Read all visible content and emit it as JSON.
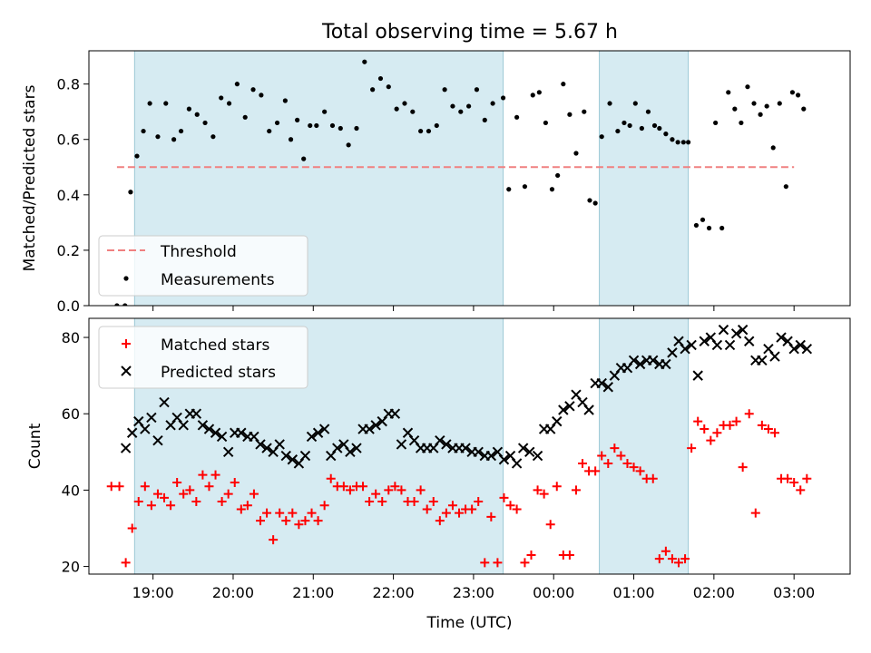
{
  "title": "Total observing time = 5.67 h",
  "chart_data": [
    {
      "type": "scatter",
      "ylabel": "Matched/Predicted stars",
      "ylim": [
        0,
        0.92
      ],
      "yticks": [
        0.0,
        0.2,
        0.4,
        0.6,
        0.8
      ],
      "ytick_labels": [
        "0.0",
        "0.2",
        "0.4",
        "0.6",
        "0.8"
      ],
      "xlim_hours": [
        18.2,
        27.7
      ],
      "shaded_intervals_hours": [
        [
          18.77,
          23.37
        ],
        [
          24.57,
          25.68
        ]
      ],
      "threshold": {
        "name": "Threshold",
        "value": 0.5,
        "x_range_hours": [
          18.55,
          27.0
        ],
        "color": "#f08080"
      },
      "legend": {
        "placement": "lower-left",
        "entries": [
          "Threshold",
          "Measurements"
        ]
      },
      "series": [
        {
          "name": "Measurements",
          "color": "#000000",
          "x": [
            18.55,
            18.65,
            18.72,
            18.8,
            18.88,
            18.96,
            19.06,
            19.16,
            19.26,
            19.35,
            19.45,
            19.55,
            19.65,
            19.75,
            19.85,
            19.95,
            20.05,
            20.15,
            20.25,
            20.35,
            20.45,
            20.55,
            20.65,
            20.72,
            20.8,
            20.88,
            20.96,
            21.04,
            21.14,
            21.24,
            21.34,
            21.44,
            21.54,
            21.64,
            21.74,
            21.84,
            21.94,
            22.04,
            22.14,
            22.24,
            22.34,
            22.44,
            22.54,
            22.64,
            22.74,
            22.84,
            22.94,
            23.04,
            23.14,
            23.24,
            23.37,
            23.44,
            23.54,
            23.64,
            23.74,
            23.82,
            23.9,
            23.98,
            24.05,
            24.12,
            24.2,
            24.28,
            24.38,
            24.45,
            24.52,
            24.6,
            24.7,
            24.8,
            24.88,
            24.95,
            25.02,
            25.1,
            25.18,
            25.26,
            25.32,
            25.4,
            25.48,
            25.55,
            25.62,
            25.68,
            25.78,
            25.86,
            25.94,
            26.02,
            26.1,
            26.18,
            26.26,
            26.34,
            26.42,
            26.5,
            26.58,
            26.66,
            26.74,
            26.82,
            26.9,
            26.98,
            27.05,
            27.12
          ],
          "y": [
            0.0,
            0.0,
            0.41,
            0.54,
            0.63,
            0.73,
            0.61,
            0.73,
            0.6,
            0.63,
            0.71,
            0.69,
            0.66,
            0.61,
            0.75,
            0.73,
            0.8,
            0.68,
            0.78,
            0.76,
            0.63,
            0.66,
            0.74,
            0.6,
            0.67,
            0.53,
            0.65,
            0.65,
            0.7,
            0.65,
            0.64,
            0.58,
            0.64,
            0.88,
            0.78,
            0.82,
            0.79,
            0.71,
            0.73,
            0.7,
            0.63,
            0.63,
            0.65,
            0.78,
            0.72,
            0.7,
            0.72,
            0.78,
            0.67,
            0.73,
            0.75,
            0.42,
            0.68,
            0.43,
            0.76,
            0.77,
            0.66,
            0.42,
            0.47,
            0.8,
            0.69,
            0.55,
            0.7,
            0.38,
            0.37,
            0.61,
            0.73,
            0.63,
            0.66,
            0.65,
            0.73,
            0.64,
            0.7,
            0.65,
            0.64,
            0.62,
            0.6,
            0.59,
            0.59,
            0.59,
            0.29,
            0.31,
            0.28,
            0.66,
            0.28,
            0.77,
            0.71,
            0.66,
            0.79,
            0.73,
            0.69,
            0.72,
            0.57,
            0.73,
            0.43,
            0.77,
            0.76,
            0.71
          ]
        }
      ]
    },
    {
      "type": "scatter",
      "ylabel": "Count",
      "xlabel": "Time (UTC)",
      "ylim": [
        18,
        85
      ],
      "yticks": [
        20,
        40,
        60,
        80
      ],
      "ytick_labels": [
        "20",
        "40",
        "60",
        "80"
      ],
      "xlim_hours": [
        18.2,
        27.7
      ],
      "xticks_hours": [
        19,
        20,
        21,
        22,
        23,
        24,
        25,
        26,
        27
      ],
      "xtick_labels": [
        "19:00",
        "20:00",
        "21:00",
        "22:00",
        "23:00",
        "00:00",
        "01:00",
        "02:00",
        "03:00"
      ],
      "shaded_intervals_hours": [
        [
          18.77,
          23.37
        ],
        [
          24.57,
          25.68
        ]
      ],
      "legend": {
        "placement": "upper-left",
        "entries": [
          "Matched stars",
          "Predicted stars"
        ]
      },
      "series": [
        {
          "name": "Matched stars",
          "marker": "plus",
          "color": "#ff0000",
          "x": [
            18.48,
            18.58,
            18.66,
            18.74,
            18.82,
            18.9,
            18.98,
            19.06,
            19.14,
            19.22,
            19.3,
            19.38,
            19.46,
            19.54,
            19.62,
            19.7,
            19.78,
            19.86,
            19.94,
            20.02,
            20.1,
            20.18,
            20.26,
            20.34,
            20.42,
            20.5,
            20.58,
            20.66,
            20.74,
            20.82,
            20.9,
            20.98,
            21.06,
            21.14,
            21.22,
            21.3,
            21.38,
            21.46,
            21.54,
            21.62,
            21.7,
            21.78,
            21.86,
            21.94,
            22.02,
            22.1,
            22.18,
            22.26,
            22.34,
            22.42,
            22.5,
            22.58,
            22.66,
            22.74,
            22.82,
            22.9,
            22.98,
            23.06,
            23.14,
            23.22,
            23.3,
            23.38,
            23.46,
            23.54,
            23.64,
            23.72,
            23.8,
            23.88,
            23.96,
            24.04,
            24.12,
            24.2,
            24.28,
            24.36,
            24.44,
            24.52,
            24.6,
            24.68,
            24.76,
            24.84,
            24.92,
            25.0,
            25.08,
            25.16,
            25.24,
            25.32,
            25.4,
            25.48,
            25.56,
            25.64,
            25.72,
            25.8,
            25.88,
            25.96,
            26.04,
            26.12,
            26.2,
            26.28,
            26.36,
            26.44,
            26.52,
            26.6,
            26.68,
            26.76,
            26.84,
            26.92,
            27.0,
            27.08,
            27.16
          ],
          "y": [
            41,
            41,
            21,
            30,
            37,
            41,
            36,
            39,
            38,
            36,
            42,
            39,
            40,
            37,
            44,
            41,
            44,
            37,
            39,
            42,
            35,
            36,
            39,
            32,
            34,
            27,
            34,
            32,
            34,
            31,
            32,
            34,
            32,
            36,
            43,
            41,
            41,
            40,
            41,
            41,
            37,
            39,
            37,
            40,
            41,
            40,
            37,
            37,
            40,
            35,
            37,
            32,
            34,
            36,
            34,
            35,
            35,
            37,
            21,
            33,
            21,
            38,
            36,
            35,
            21,
            23,
            40,
            39,
            31,
            41,
            23,
            23,
            40,
            47,
            45,
            45,
            49,
            47,
            51,
            49,
            47,
            46,
            45,
            43,
            43,
            22,
            24,
            22,
            21,
            22,
            51,
            58,
            56,
            53,
            55,
            57,
            57,
            58,
            46,
            60,
            34,
            57,
            56,
            55,
            43,
            43,
            42,
            40,
            43
          ],
          "note_order": "values listed in time order"
        },
        {
          "name": "Predicted stars",
          "marker": "x",
          "color": "#000000",
          "x": [
            18.66,
            18.74,
            18.82,
            18.9,
            18.98,
            19.06,
            19.14,
            19.22,
            19.3,
            19.38,
            19.46,
            19.54,
            19.62,
            19.7,
            19.78,
            19.86,
            19.94,
            20.02,
            20.1,
            20.18,
            20.26,
            20.34,
            20.42,
            20.5,
            20.58,
            20.66,
            20.74,
            20.82,
            20.9,
            20.98,
            21.06,
            21.14,
            21.22,
            21.3,
            21.38,
            21.46,
            21.54,
            21.62,
            21.7,
            21.78,
            21.86,
            21.94,
            22.02,
            22.1,
            22.18,
            22.26,
            22.34,
            22.42,
            22.5,
            22.58,
            22.66,
            22.74,
            22.82,
            22.9,
            22.98,
            23.06,
            23.14,
            23.22,
            23.3,
            23.38,
            23.46,
            23.54,
            23.62,
            23.7,
            23.8,
            23.88,
            23.96,
            24.04,
            24.12,
            24.2,
            24.28,
            24.36,
            24.44,
            24.52,
            24.6,
            24.68,
            24.76,
            24.84,
            24.92,
            25.0,
            25.08,
            25.16,
            25.24,
            25.32,
            25.4,
            25.48,
            25.56,
            25.64,
            25.72,
            25.8,
            25.88,
            25.96,
            26.04,
            26.12,
            26.2,
            26.28,
            26.36,
            26.44,
            26.52,
            26.6,
            26.68,
            26.76,
            26.84,
            26.92,
            27.0,
            27.08,
            27.16
          ],
          "y": [
            51,
            55,
            58,
            56,
            59,
            53,
            63,
            57,
            59,
            57,
            60,
            60,
            57,
            56,
            55,
            54,
            50,
            55,
            55,
            54,
            54,
            52,
            51,
            50,
            52,
            49,
            48,
            47,
            49,
            54,
            55,
            56,
            49,
            51,
            52,
            50,
            51,
            56,
            56,
            57,
            58,
            60,
            60,
            52,
            55,
            53,
            51,
            51,
            51,
            53,
            52,
            51,
            51,
            51,
            50,
            50,
            49,
            49,
            50,
            48,
            49,
            47,
            51,
            50,
            49,
            56,
            56,
            58,
            61,
            62,
            65,
            63,
            61,
            68,
            68,
            67,
            70,
            72,
            72,
            74,
            73,
            74,
            74,
            73,
            73,
            76,
            79,
            77,
            78,
            70,
            79,
            80,
            78,
            82,
            78,
            81,
            82,
            79,
            74,
            74,
            77,
            75,
            80,
            79,
            77,
            78,
            77
          ],
          "note_order": "values listed in time order"
        }
      ]
    }
  ]
}
